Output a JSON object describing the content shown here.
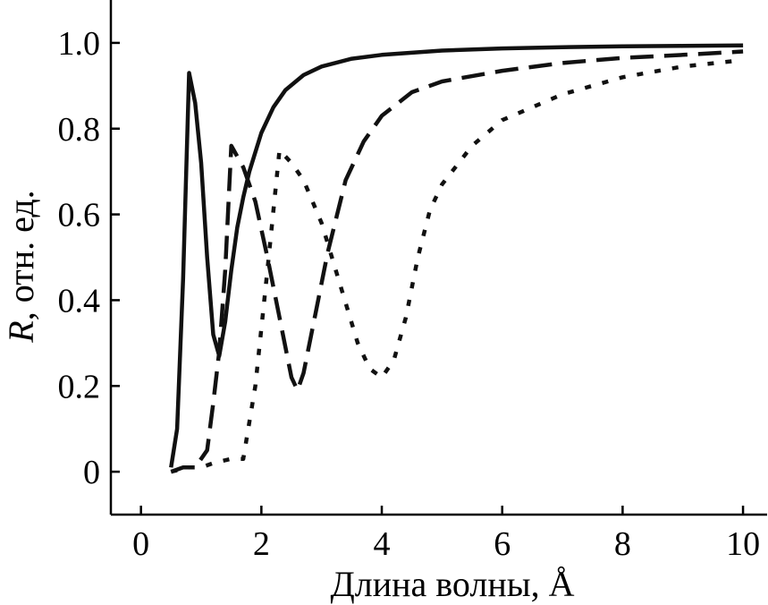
{
  "chart_data": {
    "type": "line",
    "title": "",
    "xlabel": "Длина волны, Å",
    "ylabel_italic": "R",
    "ylabel_rest": ", отн. ед.",
    "xlim": [
      -0.5,
      10.4
    ],
    "ylim": [
      -0.1,
      1.1
    ],
    "xticks": [
      0,
      2,
      4,
      6,
      8,
      10
    ],
    "xtick_labels": [
      "0",
      "2",
      "4",
      "6",
      "8",
      "10"
    ],
    "yticks": [
      0,
      0.2,
      0.4,
      0.6,
      0.8,
      1.0
    ],
    "ytick_labels": [
      "0",
      "0.2",
      "0.4",
      "0.6",
      "0.8",
      "1.0"
    ],
    "grid": false,
    "legend": "none",
    "series": [
      {
        "style": "solid",
        "x": [
          0.5,
          0.6,
          0.7,
          0.8,
          0.9,
          1.0,
          1.1,
          1.2,
          1.3,
          1.4,
          1.5,
          1.6,
          1.7,
          1.8,
          2.0,
          2.2,
          2.4,
          2.7,
          3.0,
          3.5,
          4.0,
          5.0,
          6.0,
          7.0,
          8.0,
          9.0,
          10.0
        ],
        "y": [
          0.01,
          0.1,
          0.45,
          0.93,
          0.86,
          0.72,
          0.5,
          0.32,
          0.27,
          0.35,
          0.47,
          0.57,
          0.64,
          0.7,
          0.79,
          0.85,
          0.89,
          0.925,
          0.945,
          0.963,
          0.972,
          0.982,
          0.987,
          0.99,
          0.992,
          0.993,
          0.994
        ]
      },
      {
        "style": "dashed",
        "x": [
          0.5,
          0.7,
          0.9,
          1.1,
          1.2,
          1.3,
          1.4,
          1.5,
          1.7,
          1.9,
          2.1,
          2.3,
          2.5,
          2.6,
          2.7,
          2.9,
          3.1,
          3.4,
          3.7,
          4.0,
          4.5,
          5.0,
          6.0,
          7.0,
          8.0,
          9.0,
          10.0
        ],
        "y": [
          0.0,
          0.01,
          0.01,
          0.05,
          0.16,
          0.28,
          0.47,
          0.76,
          0.71,
          0.63,
          0.5,
          0.36,
          0.22,
          0.19,
          0.23,
          0.37,
          0.51,
          0.68,
          0.77,
          0.83,
          0.885,
          0.91,
          0.935,
          0.953,
          0.965,
          0.972,
          0.98
        ]
      },
      {
        "style": "dotted",
        "x": [
          0.5,
          0.8,
          1.0,
          1.2,
          1.5,
          1.7,
          1.9,
          2.1,
          2.3,
          2.5,
          2.7,
          3.0,
          3.3,
          3.6,
          3.8,
          4.0,
          4.2,
          4.4,
          4.6,
          4.8,
          5.0,
          5.5,
          6.0,
          7.0,
          8.0,
          9.0,
          10.0
        ],
        "y": [
          0.0,
          0.01,
          0.01,
          0.02,
          0.03,
          0.03,
          0.2,
          0.47,
          0.75,
          0.72,
          0.68,
          0.58,
          0.44,
          0.3,
          0.24,
          0.22,
          0.26,
          0.36,
          0.5,
          0.61,
          0.67,
          0.76,
          0.82,
          0.88,
          0.92,
          0.945,
          0.96
        ]
      }
    ]
  }
}
